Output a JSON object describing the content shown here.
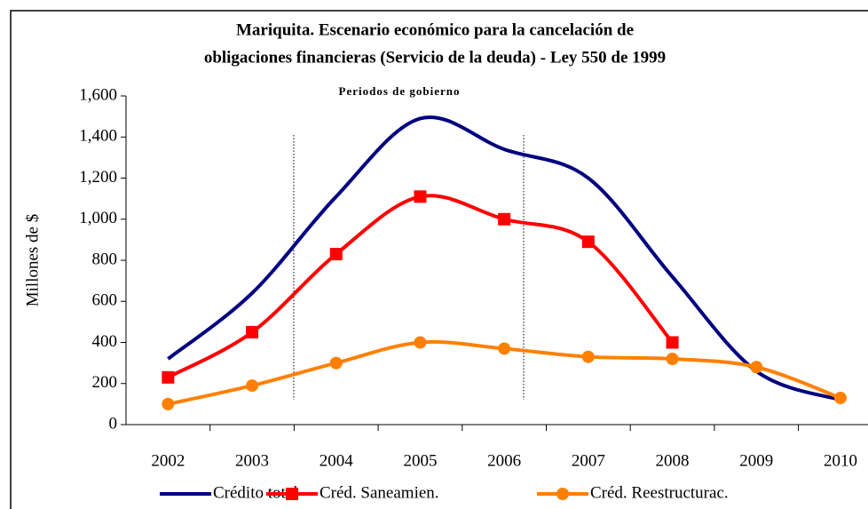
{
  "chart_data": {
    "type": "line",
    "title": [
      "Mariquita. Escenario económico para la cancelación de",
      "obligaciones financieras (Servicio de la deuda) - Ley 550 de 1999"
    ],
    "annotation": "Periodos de gobierno",
    "y_label": "Millones de $",
    "categories": [
      "2002",
      "2003",
      "2004",
      "2005",
      "2006",
      "2007",
      "2008",
      "2009",
      "2010"
    ],
    "series": [
      {
        "name": "Crédito total",
        "color": "#000080",
        "marker": "none",
        "values": [
          320,
          640,
          1110,
          1490,
          1340,
          1200,
          720,
          260,
          120
        ]
      },
      {
        "name": "Créd. Saneamien.",
        "color": "#ff0000",
        "marker": "square",
        "values": [
          230,
          450,
          830,
          1110,
          1000,
          890,
          400,
          null,
          null
        ]
      },
      {
        "name": "Créd. Reestructurac.",
        "color": "#ff8000",
        "marker": "circle",
        "values": [
          100,
          190,
          300,
          400,
          370,
          330,
          320,
          280,
          130
        ]
      }
    ],
    "ylim": [
      0,
      1600
    ],
    "yticks": [
      0,
      200,
      400,
      600,
      800,
      {
        "value": 1000,
        "label": "1,000"
      },
      {
        "value": 1200,
        "label": "1,200"
      },
      {
        "value": 1400,
        "label": "1,400"
      },
      {
        "value": 1600,
        "label": "1,600"
      }
    ],
    "grid": false,
    "legend": "bottom"
  }
}
